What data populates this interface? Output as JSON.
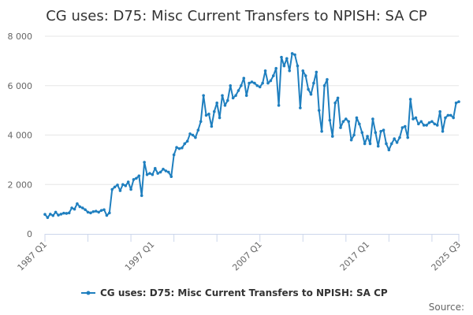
{
  "chart_data": {
    "type": "line",
    "title": "CG uses: D75: Misc Current Transfers to NPISH: SA CP",
    "xlabel": "",
    "ylabel": "",
    "ylim": [
      0,
      8000
    ],
    "yticks": [
      0,
      2000,
      4000,
      6000,
      8000
    ],
    "ytick_labels": [
      "0",
      "2 000",
      "4 000",
      "6 000",
      "8 000"
    ],
    "xtick_labels": [
      "1987 Q1",
      "1997 Q1",
      "2007 Q1",
      "2017 Q1",
      "2025 Q3"
    ],
    "grid": true,
    "legend_position": "bottom",
    "color": "#1f7fbf",
    "x_start": "1987 Q1",
    "x_end": "2025 Q3",
    "series": [
      {
        "name": "CG uses: D75: Misc Current Transfers to NPISH: SA CP",
        "values": [
          790,
          660,
          800,
          740,
          880,
          760,
          800,
          840,
          830,
          850,
          1050,
          1000,
          1220,
          1100,
          1050,
          980,
          880,
          850,
          900,
          920,
          880,
          950,
          980,
          750,
          850,
          1800,
          1900,
          1980,
          1750,
          2000,
          1950,
          2100,
          1800,
          2200,
          2250,
          2350,
          1550,
          2900,
          2400,
          2450,
          2400,
          2650,
          2450,
          2500,
          2620,
          2550,
          2500,
          2320,
          3200,
          3500,
          3450,
          3480,
          3650,
          3750,
          4050,
          4000,
          3900,
          4200,
          4550,
          5600,
          4800,
          4850,
          4350,
          4950,
          5300,
          4700,
          5600,
          5200,
          5400,
          6000,
          5500,
          5600,
          5800,
          6000,
          6300,
          5600,
          6100,
          6150,
          6100,
          6000,
          5950,
          6100,
          6600,
          6100,
          6200,
          6400,
          6700,
          5200,
          7150,
          6800,
          7100,
          6600,
          7300,
          7250,
          6800,
          5100,
          6600,
          6400,
          5850,
          5650,
          6100,
          6550,
          5000,
          4150,
          6000,
          6250,
          4600,
          3950,
          5300,
          5500,
          4300,
          4550,
          4650,
          4550,
          3800,
          4000,
          4700,
          4450,
          4100,
          3650,
          3950,
          3650,
          4650,
          4100,
          3550,
          4150,
          4200,
          3650,
          3400,
          3650,
          3850,
          3700,
          3900,
          4300,
          4350,
          3900,
          5450,
          4650,
          4700,
          4450,
          4550,
          4400,
          4400,
          4500,
          4550,
          4450,
          4400,
          4950,
          4150,
          4700,
          4800,
          4800,
          4700,
          5300,
          5350
        ]
      }
    ]
  },
  "legend": {
    "label": "CG uses: D75: Misc Current Transfers to NPISH: SA CP"
  },
  "footer": {
    "source_label": "Source:"
  }
}
